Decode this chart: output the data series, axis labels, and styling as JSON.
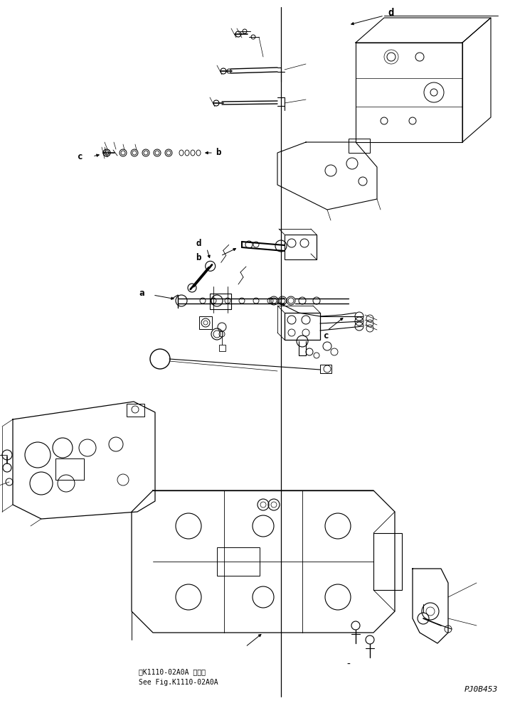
{
  "bg_color": "#ffffff",
  "line_color": "#000000",
  "fig_width": 7.24,
  "fig_height": 9.89,
  "dpi": 100,
  "watermark": "PJ0B453",
  "ref_text_line1": "第K1110-02A0A 図参照",
  "ref_text_line2": "See Fig.K1110-02A0A"
}
